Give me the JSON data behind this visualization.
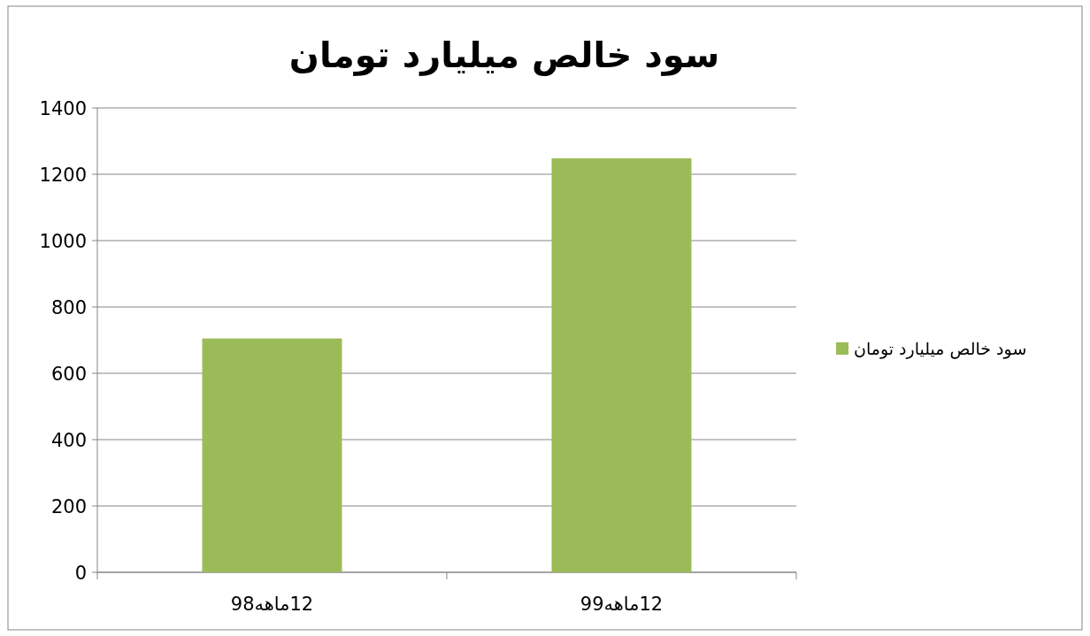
{
  "chart_data": {
    "type": "bar",
    "title": "سود خالص میلیارد تومان",
    "categories": [
      "12ماهه98",
      "12ماهه99"
    ],
    "series": [
      {
        "name": "سود خالص میلیارد تومان",
        "color": "#9bbb59",
        "values": [
          705,
          1248
        ]
      }
    ],
    "ylim": [
      0,
      1400
    ],
    "yticks": [
      0,
      200,
      400,
      600,
      800,
      1000,
      1200,
      1400
    ],
    "grid": "y",
    "legend": "right"
  }
}
